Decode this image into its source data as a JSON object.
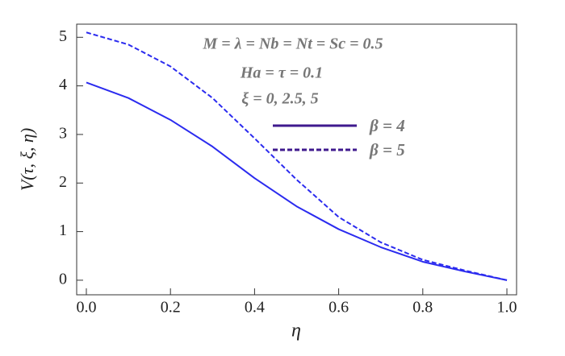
{
  "chart_data": {
    "type": "line",
    "x_label": "η",
    "y_label": "V(τ, ξ, η)",
    "annotations": [
      "M = λ = Nb = Nt = Sc = 0.5",
      "Ha = τ = 0.1",
      "ξ = 0, 2.5, 5"
    ],
    "x": [
      0,
      0.1,
      0.2,
      0.3,
      0.4,
      0.5,
      0.6,
      0.7,
      0.8,
      0.9,
      1.0
    ],
    "series": [
      {
        "name": "β = 4",
        "color": "#2b2bef",
        "dash": "solid",
        "values": [
          4.07,
          3.75,
          3.3,
          2.75,
          2.1,
          1.52,
          1.05,
          0.68,
          0.38,
          0.18,
          0
        ]
      },
      {
        "name": "β = 5",
        "color": "#2b2bef",
        "dash": "dashed",
        "values": [
          5.1,
          4.85,
          4.4,
          3.75,
          2.92,
          2.07,
          1.3,
          0.78,
          0.42,
          0.2,
          0
        ]
      }
    ],
    "legend_line_color": "#3f1a8e",
    "xlim": [
      -0.023,
      1.023
    ],
    "ylim": [
      -0.3,
      5.27
    ],
    "xticks": [
      {
        "value": 0,
        "label": "0.0"
      },
      0.2,
      0.4,
      0.6,
      0.8,
      {
        "value": 1,
        "label": "1.0"
      }
    ],
    "yticks": [
      0,
      1,
      2,
      3,
      4,
      5
    ]
  }
}
